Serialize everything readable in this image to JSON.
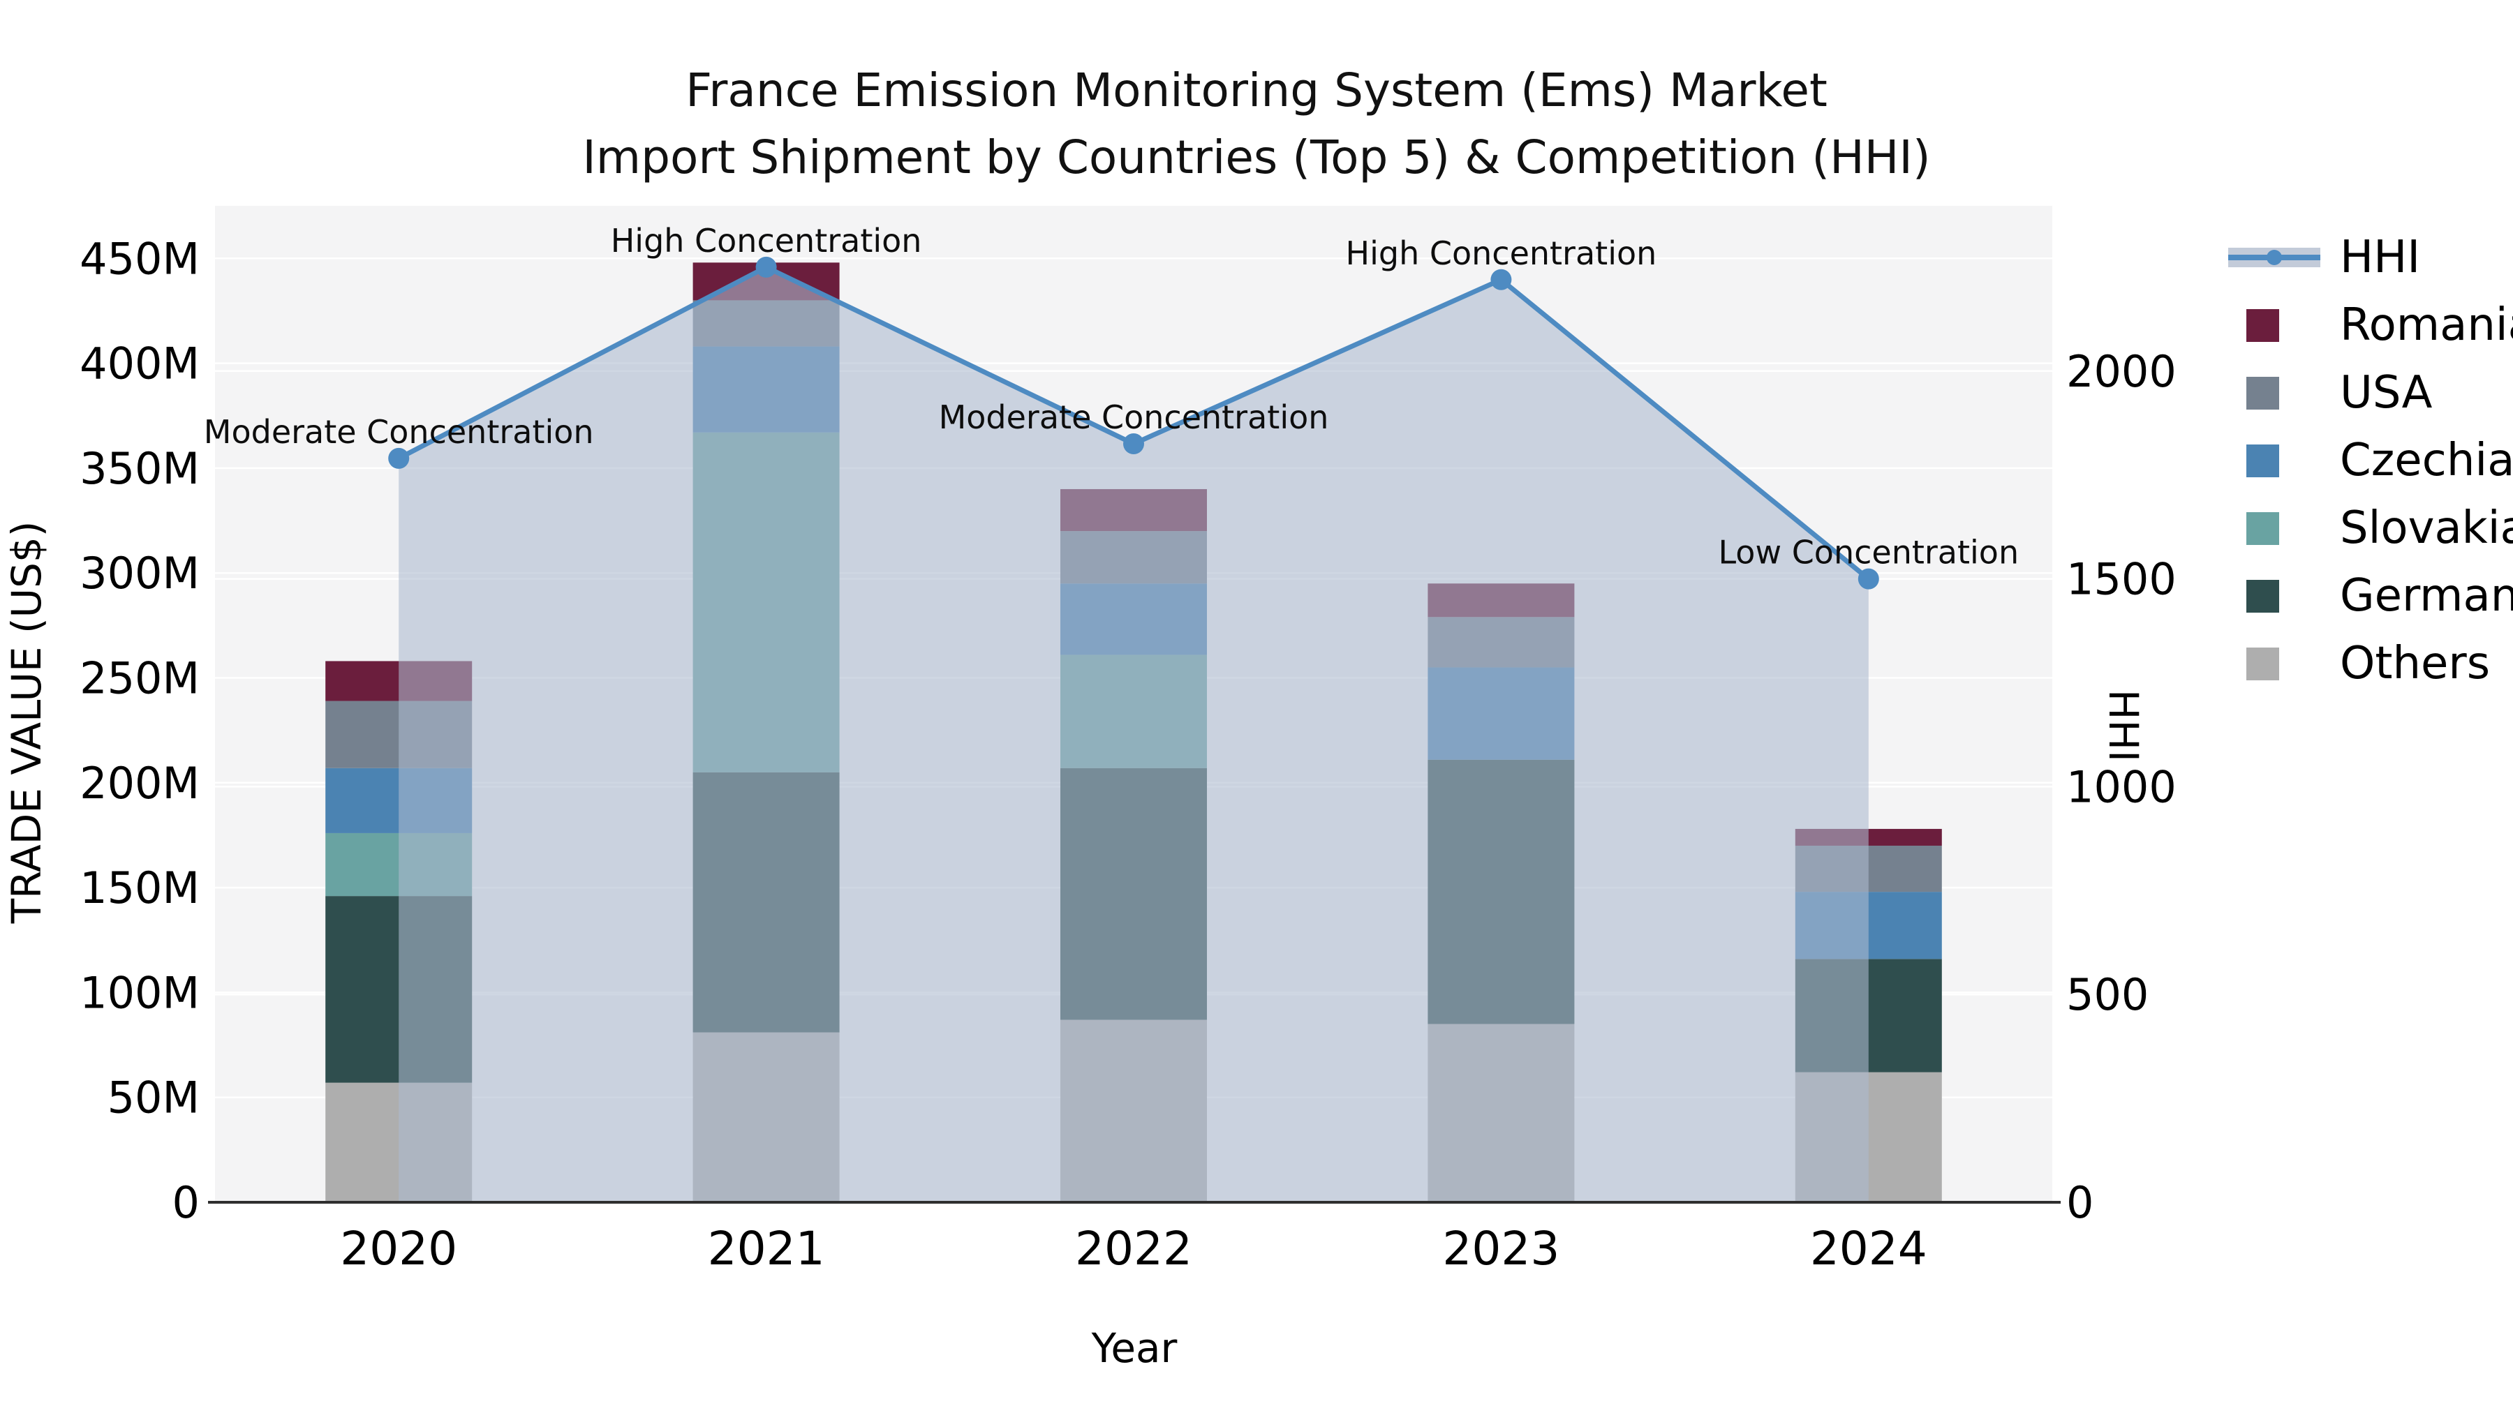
{
  "title": {
    "line1": "France Emission Monitoring System (Ems) Market",
    "line2": "Import Shipment by Countries (Top 5) & Competition (HHI)"
  },
  "axes": {
    "left": {
      "title": "TRADE VALUE (US$)",
      "ticks": [
        "0",
        "50M",
        "100M",
        "150M",
        "200M",
        "250M",
        "300M",
        "350M",
        "400M",
        "450M"
      ],
      "tick_values": [
        0,
        50,
        100,
        150,
        200,
        250,
        300,
        350,
        400,
        450
      ]
    },
    "right": {
      "title": "HHI",
      "ticks": [
        "0",
        "500",
        "1000",
        "1500",
        "2000"
      ],
      "tick_values": [
        0,
        500,
        1000,
        1500,
        2000
      ]
    },
    "x": {
      "title": "Year",
      "categories": [
        "2020",
        "2021",
        "2022",
        "2023",
        "2024"
      ]
    }
  },
  "legend": {
    "position": "right",
    "items": [
      {
        "label": "HHI",
        "type": "line",
        "color": "#4e8bc2"
      },
      {
        "label": "Romania",
        "type": "patch",
        "color": "#6b1e3d"
      },
      {
        "label": "USA",
        "type": "patch",
        "color": "#75818f"
      },
      {
        "label": "Czechia",
        "type": "patch",
        "color": "#4b83b2"
      },
      {
        "label": "Slovakia",
        "type": "patch",
        "color": "#69a3a2"
      },
      {
        "label": "Germany",
        "type": "patch",
        "color": "#2f4e4e"
      },
      {
        "label": "Others",
        "type": "patch",
        "color": "#aeaeae"
      }
    ]
  },
  "chart_data": {
    "type": "bar+line",
    "categories": [
      "2020",
      "2021",
      "2022",
      "2023",
      "2024"
    ],
    "bar_unit": "M US$ (trade value, left axis)",
    "series": [
      {
        "name": "Others",
        "color": "#aeaeae",
        "values": [
          57,
          81,
          87,
          85,
          62
        ]
      },
      {
        "name": "Germany",
        "color": "#2f4e4e",
        "values": [
          89,
          124,
          120,
          126,
          54
        ]
      },
      {
        "name": "Slovakia",
        "color": "#69a3a2",
        "values": [
          30,
          162,
          54,
          0,
          0
        ]
      },
      {
        "name": "Czechia",
        "color": "#4b83b2",
        "values": [
          31,
          41,
          34,
          44,
          32
        ]
      },
      {
        "name": "USA",
        "color": "#75818f",
        "values": [
          32,
          22,
          25,
          24,
          22
        ]
      },
      {
        "name": "Romania",
        "color": "#6b1e3d",
        "values": [
          19,
          18,
          20,
          16,
          8
        ]
      }
    ],
    "bar_totals": [
      258,
      448,
      340,
      295,
      178
    ],
    "line_series": {
      "name": "HHI",
      "color": "#4e8bc2",
      "values": [
        1790,
        2250,
        1825,
        2220,
        1500
      ],
      "area_color": "rgba(173,186,207,0.58)"
    },
    "annotations": [
      {
        "category": "2020",
        "text": "Moderate Concentration"
      },
      {
        "category": "2021",
        "text": "High Concentration"
      },
      {
        "category": "2022",
        "text": "Moderate Concentration"
      },
      {
        "category": "2023",
        "text": "High Concentration"
      },
      {
        "category": "2024",
        "text": "Low Concentration"
      }
    ],
    "ylim_left": [
      0,
      475
    ],
    "ylim_right": [
      0,
      2390
    ],
    "grid": true,
    "legend_position": "right"
  },
  "colors": {
    "plot_bg": "#f4f4f5",
    "grid": "#ffffff",
    "axis_line": "#2f2f2f",
    "text": "#000000"
  }
}
